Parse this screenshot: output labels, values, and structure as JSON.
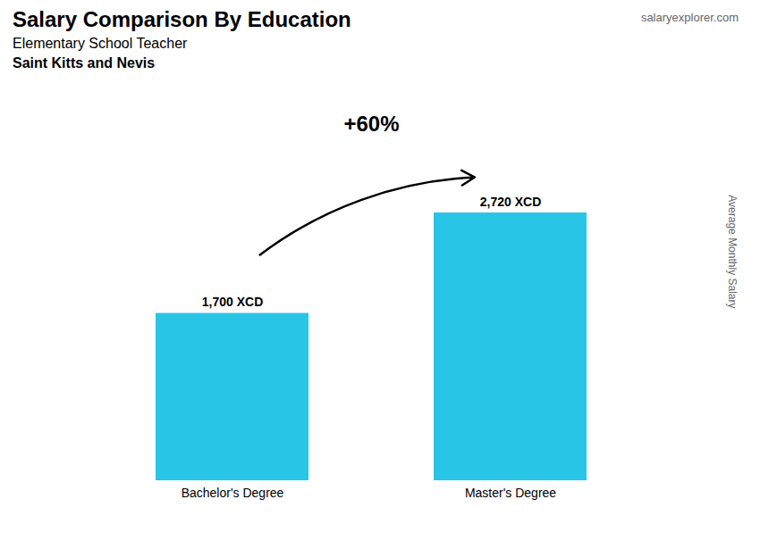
{
  "chart_data": {
    "type": "bar",
    "title": "Salary Comparison By Education",
    "subtitle": [
      "Elementary School Teacher",
      "Saint Kitts and Nevis"
    ],
    "source": "salaryexplorer.com",
    "ylabel": "Average Monthly Salary",
    "categories": [
      "Bachelor's Degree",
      "Master's Degree"
    ],
    "values": [
      1700,
      2720
    ],
    "value_labels": [
      "1,700 XCD",
      "2,720 XCD"
    ],
    "data_labels": true,
    "annotations": [
      "+60%"
    ],
    "color": "#29c5e6",
    "ylim": [
      0,
      3500
    ],
    "tick_labels": "x",
    "grid": false
  }
}
